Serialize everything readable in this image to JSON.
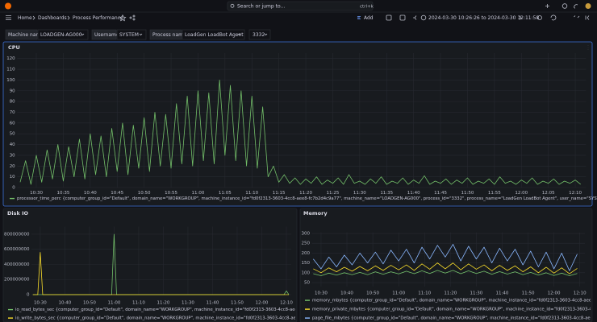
{
  "topbar": {
    "search": "Search or jump to...",
    "shortcut": "ctrl+k"
  },
  "breadcrumbs": [
    "Home",
    "Dashboards",
    "Process Performance"
  ],
  "toolbar": {
    "add": "Add",
    "time_range": "2024-03-30 10:26:26 to 2024-03-30 12:11:58"
  },
  "variables": [
    {
      "label": "Machine name",
      "values": [
        "LOADGEN-AG000"
      ]
    },
    {
      "label": "Username",
      "values": [
        "SYSTEM"
      ]
    },
    {
      "label": "Process name",
      "values": [
        "LoadGen LoadBot Agent",
        "3332"
      ]
    }
  ],
  "chart_data": [
    {
      "type": "line",
      "title": "CPU",
      "grid": true,
      "xlim": [
        "10:26:26",
        "12:11:58"
      ],
      "xticks": [
        "10:30",
        "10:35",
        "10:40",
        "10:45",
        "10:50",
        "10:55",
        "11:00",
        "11:05",
        "11:10",
        "11:15",
        "11:20",
        "11:25",
        "11:30",
        "11:35",
        "11:40",
        "11:45",
        "11:50",
        "11:55",
        "12:00",
        "12:05",
        "12:10"
      ],
      "ylim": [
        0,
        125
      ],
      "yticks": [
        0,
        10,
        20,
        30,
        40,
        50,
        60,
        70,
        80,
        90,
        100,
        110,
        120
      ],
      "x": [
        "10:27",
        "10:28",
        "10:29",
        "10:30",
        "10:31",
        "10:32",
        "10:33",
        "10:34",
        "10:35",
        "10:36",
        "10:37",
        "10:38",
        "10:39",
        "10:40",
        "10:41",
        "10:42",
        "10:43",
        "10:44",
        "10:45",
        "10:46",
        "10:47",
        "10:48",
        "10:49",
        "10:50",
        "10:51",
        "10:52",
        "10:53",
        "10:54",
        "10:55",
        "10:56",
        "10:57",
        "10:58",
        "10:59",
        "11:00",
        "11:01",
        "11:02",
        "11:03",
        "11:04",
        "11:05",
        "11:06",
        "11:07",
        "11:08",
        "11:09",
        "11:10",
        "11:11",
        "11:12",
        "11:13",
        "11:14",
        "11:15",
        "11:16",
        "11:17",
        "11:18",
        "11:19",
        "11:20",
        "11:21",
        "11:22",
        "11:23",
        "11:24",
        "11:25",
        "11:26",
        "11:27",
        "11:28",
        "11:29",
        "11:30",
        "11:31",
        "11:32",
        "11:33",
        "11:34",
        "11:35",
        "11:36",
        "11:37",
        "11:38",
        "11:39",
        "11:40",
        "11:41",
        "11:42",
        "11:43",
        "11:44",
        "11:45",
        "11:46",
        "11:47",
        "11:48",
        "11:49",
        "11:50",
        "11:51",
        "11:52",
        "11:53",
        "11:54",
        "11:55",
        "11:56",
        "11:57",
        "11:58",
        "11:59",
        "12:00",
        "12:01",
        "12:02",
        "12:03",
        "12:04",
        "12:05",
        "12:06",
        "12:07",
        "12:08",
        "12:09",
        "12:10",
        "12:11"
      ],
      "series": [
        {
          "name": "processor_time_perc {computer_group_id=\"Default\", domain_name=\"WORKGROUP\", machine_instance_id=\"fd0f2313-3603-4cc8-aee8-fc7b2d4c9a77\", machine_name=\"LOADGEN-AG000\", process_id=\"3332\", process_name=\"LoadGen LoadBot Agent\", user_name=\"SYSTEM\"}",
          "color": "#73bf69",
          "values": [
            5,
            25,
            3,
            30,
            5,
            35,
            8,
            40,
            6,
            38,
            10,
            45,
            8,
            50,
            12,
            48,
            10,
            55,
            15,
            60,
            12,
            58,
            18,
            65,
            15,
            70,
            20,
            68,
            18,
            78,
            22,
            85,
            20,
            90,
            25,
            88,
            22,
            100,
            30,
            95,
            25,
            90,
            20,
            85,
            18,
            75,
            10,
            20,
            5,
            12,
            4,
            9,
            3,
            8,
            4,
            10,
            3,
            7,
            4,
            9,
            3,
            12,
            4,
            6,
            3,
            8,
            4,
            10,
            3,
            6,
            4,
            9,
            3,
            7,
            4,
            11,
            3,
            6,
            4,
            8,
            3,
            7,
            4,
            9,
            3,
            6,
            4,
            8,
            3,
            10,
            4,
            6,
            3,
            7,
            4,
            9,
            3,
            6,
            4,
            8,
            3,
            6,
            4,
            7,
            3
          ]
        }
      ]
    },
    {
      "type": "line",
      "title": "Disk IO",
      "grid": true,
      "xlim": [
        "10:26:26",
        "12:11:58"
      ],
      "xticks": [
        "10:30",
        "10:40",
        "10:50",
        "11:00",
        "11:10",
        "11:20",
        "11:30",
        "11:40",
        "11:50",
        "12:00",
        "12:10"
      ],
      "ylim": [
        0,
        900000000
      ],
      "yticks": [
        0,
        200000000,
        400000000,
        600000000,
        800000000
      ],
      "x": [
        "10:27",
        "10:29",
        "10:30",
        "10:31",
        "10:59",
        "11:00",
        "11:01",
        "12:09",
        "12:10",
        "12:11"
      ],
      "series": [
        {
          "name": "io_read_bytes_sec {computer_group_id=\"Default\", domain_name=\"WORKGROUP\", machine_instance_id=\"fd0f2313-3603-4cc8-aee8-fc7b2d4c9a77\", machine",
          "color": "#73bf69",
          "values": [
            0,
            0,
            0,
            0,
            0,
            800000000,
            0,
            0,
            50000000,
            0
          ]
        },
        {
          "name": "io_write_bytes_sec {computer_group_id=\"Default\", domain_name=\"WORKGROUP\", machine_instance_id=\"fd0f2313-3603-4cc8-aee8-fc7b2d4c9a77\", machine",
          "color": "#fade2a",
          "values": [
            0,
            0,
            560000000,
            0,
            0,
            0,
            0,
            0,
            0,
            0
          ]
        }
      ]
    },
    {
      "type": "line",
      "title": "Memory",
      "grid": true,
      "xlim": [
        "10:26:26",
        "12:11:58"
      ],
      "xticks": [
        "10:30",
        "10:40",
        "10:50",
        "11:00",
        "11:10",
        "11:20",
        "11:30",
        "11:40",
        "11:50",
        "12:00",
        "12:10"
      ],
      "ylim": [
        30,
        305
      ],
      "yticks": [
        50,
        100,
        150,
        200,
        250,
        300
      ],
      "x": [
        "10:27",
        "10:30",
        "10:33",
        "10:36",
        "10:39",
        "10:42",
        "10:45",
        "10:48",
        "10:51",
        "10:54",
        "10:57",
        "11:00",
        "11:03",
        "11:06",
        "11:09",
        "11:12",
        "11:15",
        "11:18",
        "11:21",
        "11:24",
        "11:27",
        "11:30",
        "11:33",
        "11:36",
        "11:39",
        "11:42",
        "11:45",
        "11:48",
        "11:51",
        "11:54",
        "11:57",
        "12:00",
        "12:03",
        "12:06",
        "12:09"
      ],
      "series": [
        {
          "name": "memory_mbytes {computer_group_id=\"Default\", domain_name=\"WORKGROUP\", machine_instance_id=\"fd0f2313-3603-4cc8-aee8-fc7b2d4c9a77\", machine",
          "color": "#73bf69",
          "values": [
            95,
            85,
            98,
            88,
            100,
            90,
            102,
            90,
            105,
            92,
            105,
            94,
            108,
            95,
            110,
            96,
            112,
            98,
            112,
            95,
            110,
            96,
            108,
            92,
            106,
            93,
            105,
            90,
            102,
            88,
            100,
            86,
            98,
            85,
            96
          ]
        },
        {
          "name": "memory_private_mbytes {computer_group_id=\"Default\", domain_name=\"WORKGROUP\", machine_instance_id=\"fd0f2313-3603-4cc8-aee8-fc7b2d4c9a77\", machine",
          "color": "#fade2a",
          "values": [
            120,
            100,
            125,
            105,
            128,
            108,
            132,
            110,
            135,
            112,
            138,
            115,
            140,
            112,
            145,
            118,
            150,
            120,
            150,
            115,
            145,
            118,
            140,
            110,
            138,
            112,
            135,
            105,
            130,
            100,
            128,
            98,
            125,
            95,
            122
          ]
        },
        {
          "name": "page_file_mbytes {computer_group_id=\"Default\", domain_name=\"WORKGROUP\", machine_instance_id=\"fd0f2313-3603-4cc8-aee8-fc7b2d4c9a77\", machine",
          "color": "#8ab8ff",
          "values": [
            170,
            120,
            180,
            130,
            190,
            140,
            200,
            150,
            205,
            145,
            215,
            160,
            220,
            150,
            230,
            170,
            240,
            180,
            245,
            160,
            235,
            170,
            230,
            150,
            225,
            160,
            220,
            140,
            210,
            130,
            205,
            120,
            200,
            110,
            195
          ]
        }
      ]
    }
  ]
}
